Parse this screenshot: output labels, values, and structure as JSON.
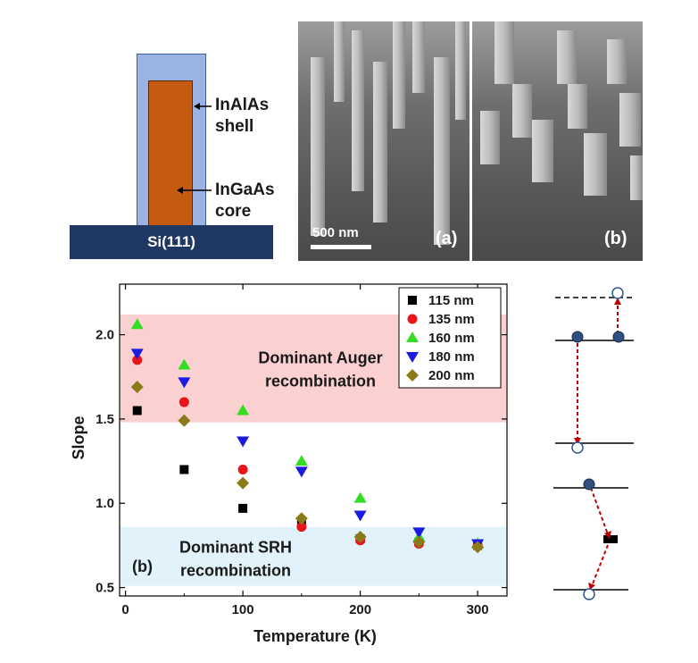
{
  "schematic": {
    "shell_label_1": "InAlAs",
    "shell_label_2": "shell",
    "core_label_1": "InGaAs",
    "core_label_2": "core",
    "substrate_label": "Si(111)",
    "colors": {
      "shell": "#9ab3e0",
      "core": "#c55a11",
      "substrate": "#203864"
    }
  },
  "sem": {
    "scale_bar_label": "500 nm",
    "panel_a_label": "(a)",
    "panel_b_label": "(b)"
  },
  "chart_data": {
    "type": "scatter",
    "xlabel": "Temperature (K)",
    "ylabel": "Slope",
    "xlim": [
      -5,
      325
    ],
    "ylim": [
      0.45,
      2.3
    ],
    "xticks": [
      0,
      100,
      200,
      300
    ],
    "yticks": [
      0.5,
      1.0,
      1.5,
      2.0
    ],
    "ytick_labels": [
      "0.5",
      "1.0",
      "1.5",
      "2.0"
    ],
    "panel_label": "(b)",
    "regions": [
      {
        "name": "auger",
        "y0": 1.48,
        "y1": 2.12,
        "color": "#fbd0d0",
        "label_1": "Dominant Auger",
        "label_2": "recombination"
      },
      {
        "name": "srh",
        "y0": 0.51,
        "y1": 0.86,
        "color": "#e2f2fa",
        "label_1": "Dominant SRH",
        "label_2": "recombination"
      }
    ],
    "series": [
      {
        "name": "115 nm",
        "marker": "square",
        "color": "#000000",
        "x": [
          10,
          50,
          100,
          150,
          200,
          250,
          300
        ],
        "y": [
          1.55,
          1.2,
          0.97,
          0.88,
          0.79,
          0.77,
          0.75
        ]
      },
      {
        "name": "135 nm",
        "marker": "circle",
        "color": "#e8141a",
        "x": [
          10,
          50,
          100,
          150,
          200,
          250,
          300
        ],
        "y": [
          1.85,
          1.6,
          1.2,
          0.86,
          0.78,
          0.76,
          0.75
        ]
      },
      {
        "name": "160 nm",
        "marker": "triangle-up",
        "color": "#33dd22",
        "x": [
          10,
          50,
          100,
          150,
          200,
          250,
          300
        ],
        "y": [
          2.06,
          1.82,
          1.55,
          1.25,
          1.03,
          0.8,
          0.76
        ]
      },
      {
        "name": "180 nm",
        "marker": "triangle-down",
        "color": "#1a1ae0",
        "x": [
          10,
          50,
          100,
          150,
          200,
          250,
          300
        ],
        "y": [
          1.89,
          1.72,
          1.37,
          1.19,
          0.93,
          0.83,
          0.76
        ]
      },
      {
        "name": "200 nm",
        "marker": "diamond",
        "color": "#8b7a1a",
        "x": [
          10,
          50,
          100,
          150,
          200,
          250,
          300
        ],
        "y": [
          1.69,
          1.49,
          1.12,
          0.91,
          0.8,
          0.77,
          0.74
        ]
      }
    ]
  }
}
